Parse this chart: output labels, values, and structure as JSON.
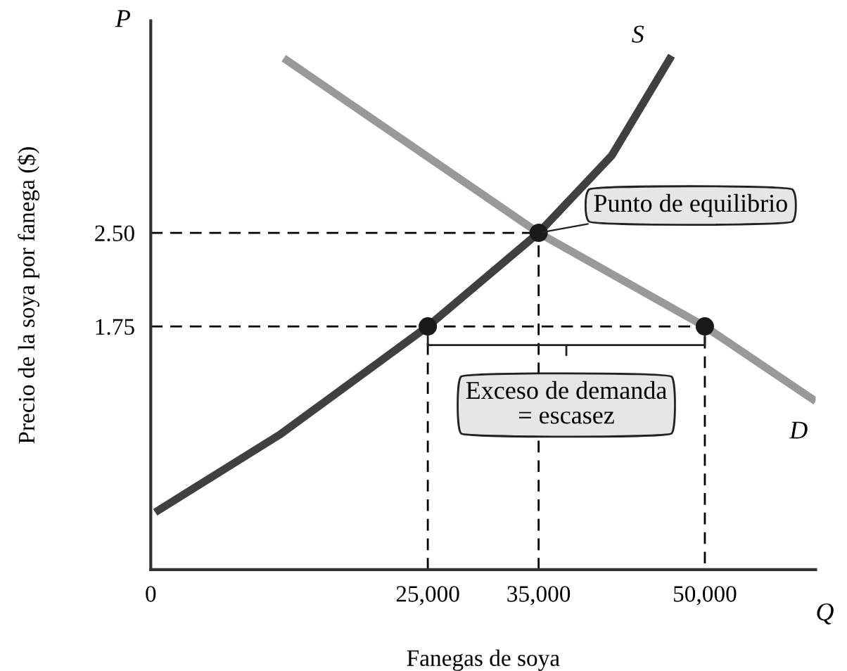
{
  "chart_data": {
    "type": "line",
    "xlabel": "Fanegas de soya",
    "ylabel": "Precio de la soya por fanega ($)",
    "xlim": [
      0,
      60000
    ],
    "ylim": [
      -0.2,
      4.2
    ],
    "xticks": [
      0,
      {
        "value": 25000,
        "label": "25,000"
      },
      {
        "value": 35000,
        "label": "35,000"
      },
      {
        "value": 50000,
        "label": "50,000"
      }
    ],
    "yticks": [
      {
        "value": 1.75,
        "label": "1.75"
      },
      {
        "value": 2.5,
        "label": "2.50"
      }
    ],
    "grid": false,
    "legend": false,
    "series": [
      {
        "name": "S",
        "color": "#404040",
        "x": [
          400,
          11600,
          25000,
          35000,
          41600,
          47000
        ],
        "values": [
          0.26,
          0.88,
          1.75,
          2.5,
          3.12,
          3.92
        ]
      },
      {
        "name": "D",
        "color": "#999999",
        "x": [
          12000,
          35000,
          50000,
          60000
        ],
        "values": [
          3.9,
          2.5,
          1.75,
          1.15
        ]
      },
      {
        "type": "line",
        "line_style": "dashed",
        "color": "#000000",
        "x": [
          0,
          35000
        ],
        "values": [
          2.5,
          2.5
        ]
      },
      {
        "type": "line",
        "line_style": "dashed",
        "color": "#000000",
        "x": [
          0,
          50000
        ],
        "values": [
          1.75,
          1.75
        ]
      },
      {
        "type": "line",
        "line_style": "dashed",
        "color": "#000000",
        "x": [
          25000,
          25000
        ],
        "values": [
          -0.2,
          1.75
        ]
      },
      {
        "type": "line",
        "line_style": "dashed",
        "color": "#000000",
        "x": [
          35000,
          35000
        ],
        "values": [
          -0.2,
          2.5
        ]
      },
      {
        "type": "line",
        "line_style": "dashed",
        "color": "#000000",
        "x": [
          50000,
          50000
        ],
        "values": [
          -0.15,
          1.75
        ]
      },
      {
        "type": "line",
        "color": "#222222",
        "x": [
          25000,
          25000,
          37500,
          37500,
          37500,
          50000,
          50000
        ],
        "values": [
          1.69,
          1.6,
          1.6,
          1.52,
          1.6,
          1.6,
          1.69
        ]
      },
      {
        "type": "scatter",
        "marker": "circle",
        "color": "#1a1a1a",
        "x": [
          25000,
          35000,
          50000
        ],
        "values": [
          1.75,
          2.5,
          1.75
        ]
      }
    ],
    "annotations": [
      "P",
      "Q",
      "Exceso de demanda\n= escasez",
      {
        "text": "Punto de equilibrio",
        "x": 35000,
        "y": 2.5
      }
    ]
  }
}
